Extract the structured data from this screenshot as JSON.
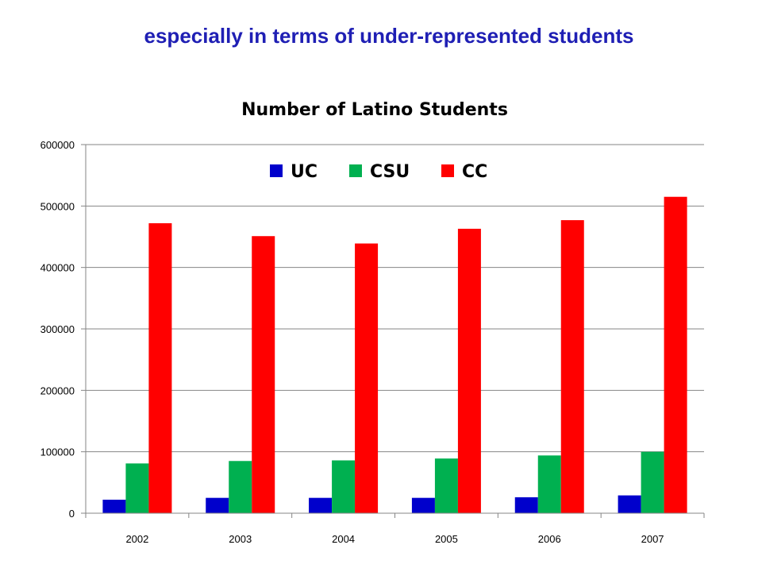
{
  "slide": {
    "heading": "especially in terms of under-represented students"
  },
  "chart_data": {
    "type": "bar",
    "title": "Number of Latino Students",
    "xlabel": "",
    "ylabel": "",
    "categories": [
      "2002",
      "2003",
      "2004",
      "2005",
      "2006",
      "2007"
    ],
    "ylim": [
      0,
      600000
    ],
    "yticks": [
      0,
      100000,
      200000,
      300000,
      400000,
      500000,
      600000
    ],
    "grid": true,
    "legend_position": "top",
    "series": [
      {
        "name": "UC",
        "color": "#0000cc",
        "values": [
          22000,
          25000,
          25000,
          25000,
          26000,
          29000
        ]
      },
      {
        "name": "CSU",
        "color": "#00b050",
        "values": [
          81000,
          85000,
          86000,
          89000,
          94000,
          100000
        ]
      },
      {
        "name": "CC",
        "color": "#ff0000",
        "values": [
          472000,
          451000,
          439000,
          463000,
          477000,
          515000
        ]
      }
    ]
  }
}
